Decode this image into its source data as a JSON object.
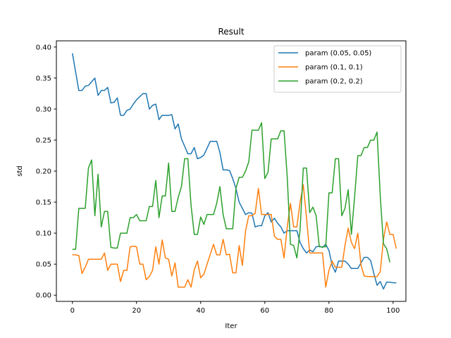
{
  "chart_data": {
    "type": "line",
    "title": "Result",
    "xlabel": "Iter",
    "ylabel": "std",
    "xlim": [
      -5,
      104
    ],
    "ylim": [
      -0.01,
      0.41
    ],
    "xticks": [
      0,
      20,
      40,
      60,
      80,
      100
    ],
    "yticks": [
      0.0,
      0.05,
      0.1,
      0.15,
      0.2,
      0.25,
      0.3,
      0.35,
      0.4
    ],
    "ytick_labels": [
      "0.00",
      "0.05",
      "0.10",
      "0.15",
      "0.20",
      "0.25",
      "0.30",
      "0.35",
      "0.40"
    ],
    "grid": false,
    "legend_position": "top-right",
    "series": [
      {
        "name": "param (0.05, 0.05)",
        "color": "#1f77b4",
        "values": [
          0.39,
          0.36,
          0.33,
          0.33,
          0.337,
          0.338,
          0.344,
          0.35,
          0.322,
          0.33,
          0.33,
          0.335,
          0.31,
          0.311,
          0.318,
          0.29,
          0.29,
          0.298,
          0.3,
          0.308,
          0.315,
          0.32,
          0.325,
          0.325,
          0.3,
          0.306,
          0.308,
          0.283,
          0.29,
          0.29,
          0.29,
          0.291,
          0.268,
          0.276,
          0.252,
          0.24,
          0.228,
          0.228,
          0.238,
          0.22,
          0.222,
          0.226,
          0.237,
          0.248,
          0.248,
          0.248,
          0.23,
          0.202,
          0.202,
          0.201,
          0.188,
          0.172,
          0.15,
          0.14,
          0.13,
          0.133,
          0.132,
          0.11,
          0.112,
          0.112,
          0.128,
          0.133,
          0.118,
          0.124,
          0.116,
          0.11,
          0.1,
          0.104,
          0.104,
          0.104,
          0.104,
          0.085,
          0.075,
          0.068,
          0.073,
          0.07,
          0.078,
          0.079,
          0.077,
          0.082,
          0.072,
          0.048,
          0.037,
          0.055,
          0.055,
          0.055,
          0.05,
          0.043,
          0.043,
          0.043,
          0.052,
          0.061,
          0.061,
          0.056,
          0.035,
          0.016,
          0.022,
          0.01,
          0.021,
          0.021,
          0.02,
          0.02
        ]
      },
      {
        "name": "param (0.1, 0.1)",
        "color": "#ff7f0e",
        "values": [
          0.065,
          0.065,
          0.064,
          0.035,
          0.045,
          0.058,
          0.058,
          0.058,
          0.058,
          0.058,
          0.068,
          0.04,
          0.05,
          0.05,
          0.05,
          0.022,
          0.04,
          0.04,
          0.078,
          0.079,
          0.078,
          0.05,
          0.05,
          0.025,
          0.03,
          0.04,
          0.078,
          0.05,
          0.089,
          0.06,
          0.058,
          0.031,
          0.052,
          0.013,
          0.013,
          0.013,
          0.025,
          0.013,
          0.041,
          0.055,
          0.028,
          0.034,
          0.05,
          0.066,
          0.082,
          0.065,
          0.065,
          0.09,
          0.065,
          0.066,
          0.036,
          0.036,
          0.08,
          0.048,
          0.104,
          0.128,
          0.128,
          0.132,
          0.172,
          0.13,
          0.13,
          0.13,
          0.13,
          0.095,
          0.09,
          0.09,
          0.06,
          0.11,
          0.148,
          0.11,
          0.11,
          0.15,
          0.178,
          0.125,
          0.068,
          0.068,
          0.068,
          0.068,
          0.068,
          0.013,
          0.04,
          0.055,
          0.045,
          0.045,
          0.045,
          0.08,
          0.108,
          0.085,
          0.075,
          0.1,
          0.048,
          0.031,
          0.03,
          0.03,
          0.03,
          0.03,
          0.038,
          0.09,
          0.118,
          0.098,
          0.098,
          0.075
        ]
      },
      {
        "name": "param (0.2, 0.2)",
        "color": "#2ca02c",
        "values": [
          0.074,
          0.074,
          0.14,
          0.14,
          0.14,
          0.205,
          0.218,
          0.128,
          0.195,
          0.11,
          0.135,
          0.135,
          0.077,
          0.076,
          0.076,
          0.1,
          0.1,
          0.1,
          0.125,
          0.125,
          0.13,
          0.12,
          0.12,
          0.12,
          0.143,
          0.143,
          0.185,
          0.125,
          0.16,
          0.16,
          0.213,
          0.135,
          0.135,
          0.158,
          0.175,
          0.22,
          0.22,
          0.145,
          0.098,
          0.098,
          0.126,
          0.114,
          0.13,
          0.13,
          0.13,
          0.148,
          0.175,
          0.13,
          0.107,
          0.107,
          0.107,
          0.172,
          0.19,
          0.19,
          0.2,
          0.215,
          0.266,
          0.266,
          0.266,
          0.278,
          0.188,
          0.198,
          0.252,
          0.252,
          0.252,
          0.265,
          0.265,
          0.19,
          0.082,
          0.08,
          0.06,
          0.105,
          0.205,
          0.205,
          0.133,
          0.142,
          0.128,
          0.078,
          0.078,
          0.078,
          0.165,
          0.165,
          0.22,
          0.22,
          0.128,
          0.14,
          0.17,
          0.098,
          0.158,
          0.225,
          0.225,
          0.238,
          0.238,
          0.25,
          0.25,
          0.263,
          0.16,
          0.083,
          0.075,
          0.053
        ]
      }
    ]
  }
}
